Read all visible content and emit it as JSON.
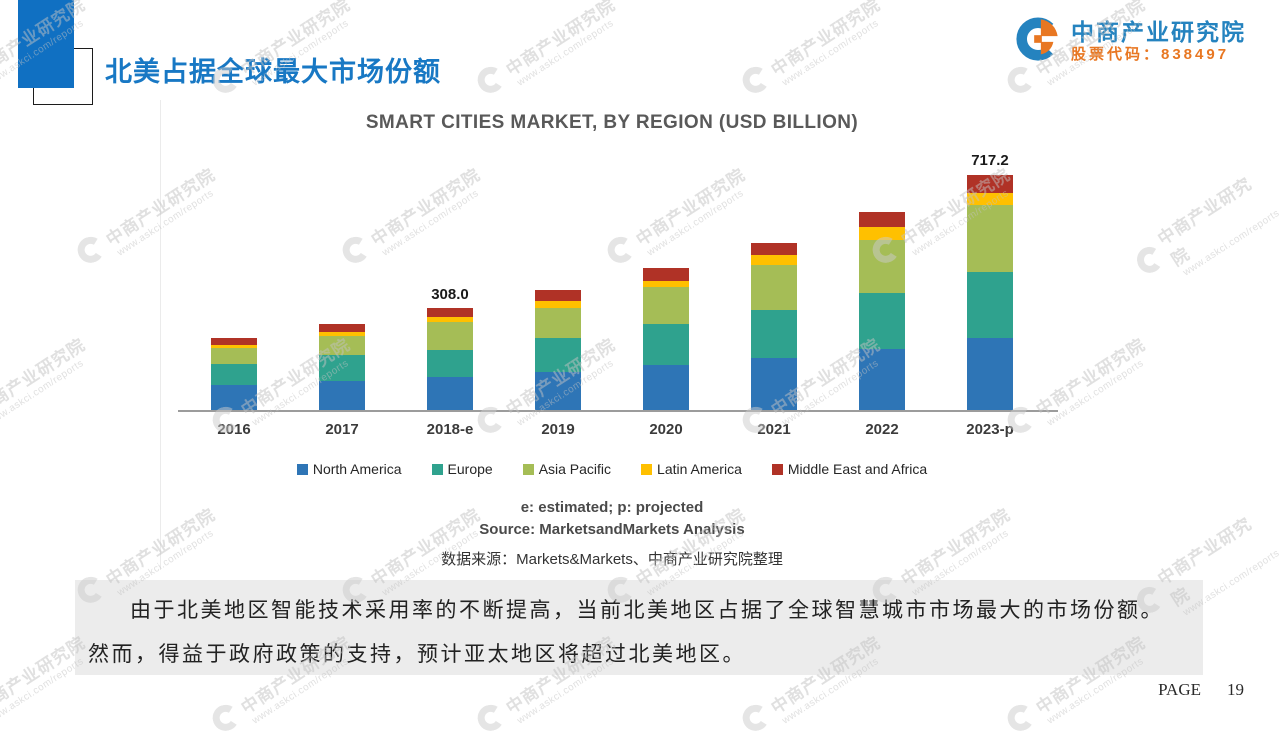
{
  "page": {
    "title": "北美占据全球最大市场份额",
    "footer_label": "PAGE",
    "footer_number": "19"
  },
  "brand": {
    "name": "中商产业研究院",
    "stock_code": "股票代码：838497",
    "blue": "#2583bf",
    "orange": "#e87722"
  },
  "watermark": {
    "line1": "中商产业研究院",
    "line2": "www.askci.com/reports"
  },
  "chart_data": {
    "type": "bar",
    "stacked": true,
    "title": "SMART CITIES MARKET, BY REGION (USD BILLION)",
    "categories": [
      "2016",
      "2017",
      "2018-e",
      "2019",
      "2020",
      "2021",
      "2022",
      "2023-p"
    ],
    "series": [
      {
        "name": "North America",
        "color": "#2e75b6",
        "values": [
          75,
          87,
          100,
          116,
          136,
          160,
          186,
          218
        ]
      },
      {
        "name": "Europe",
        "color": "#2fa28e",
        "values": [
          65,
          78,
          81,
          104,
          124,
          146,
          170,
          201
        ]
      },
      {
        "name": "Asia Pacific",
        "color": "#a5bd56",
        "values": [
          50,
          58,
          84,
          90,
          112,
          138,
          163,
          204
        ]
      },
      {
        "name": "Latin America",
        "color": "#ffc000",
        "values": [
          10,
          12,
          16,
          22,
          19,
          30,
          40,
          38
        ]
      },
      {
        "name": "Middle East and Africa",
        "color": "#b03226",
        "values": [
          20,
          23,
          27,
          33,
          41,
          37,
          46,
          56.2
        ]
      }
    ],
    "bar_labels": [
      "",
      "",
      "308.0",
      "",
      "",
      "",
      "",
      "717.2"
    ],
    "totals_labeled": {
      "2018-e": 308.0,
      "2023-p": 717.2
    },
    "legend_position": "bottom",
    "grid": false,
    "notes": {
      "note1": "e: estimated; p: projected",
      "note2": "Source: MarketsandMarkets Analysis",
      "source_cn": "数据来源：Markets&Markets、中商产业研究院整理"
    }
  },
  "body_text": {
    "line1": "由于北美地区智能技术采用率的不断提高，当前北美地区占据了全球智慧城市市场最大的市场份额。",
    "line2": "然而，得益于政府政策的支持，预计亚太地区将超过北美地区。"
  }
}
